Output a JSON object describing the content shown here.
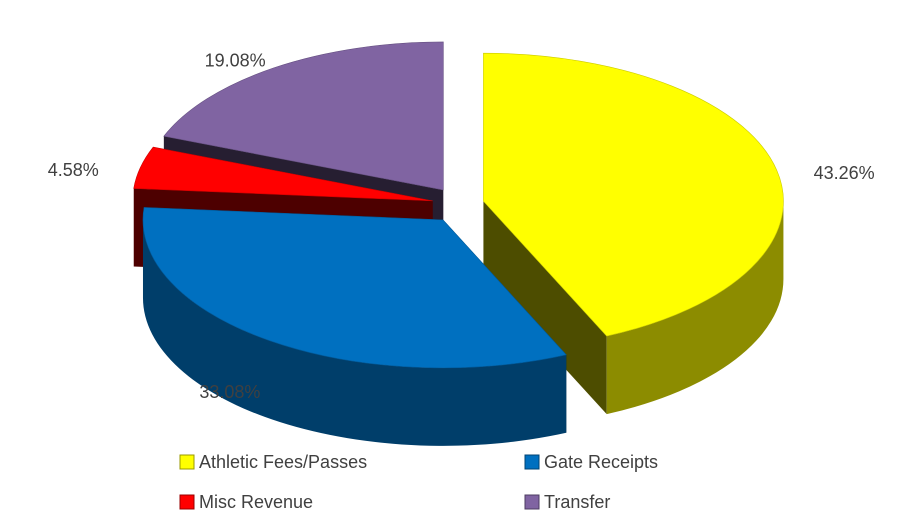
{
  "chart_data": {
    "type": "pie",
    "categories": [
      "Athletic Fees/Passes",
      "Gate Receipts",
      "Misc Revenue",
      "Transfer"
    ],
    "values": [
      43.26,
      33.08,
      4.58,
      19.08
    ],
    "value_labels": [
      "43.26%",
      "33.08%",
      "4.58%",
      "19.08%"
    ],
    "colors": [
      "#ffff00",
      "#0070c0",
      "#ff0000",
      "#8064a2"
    ],
    "legend": "bottom"
  }
}
